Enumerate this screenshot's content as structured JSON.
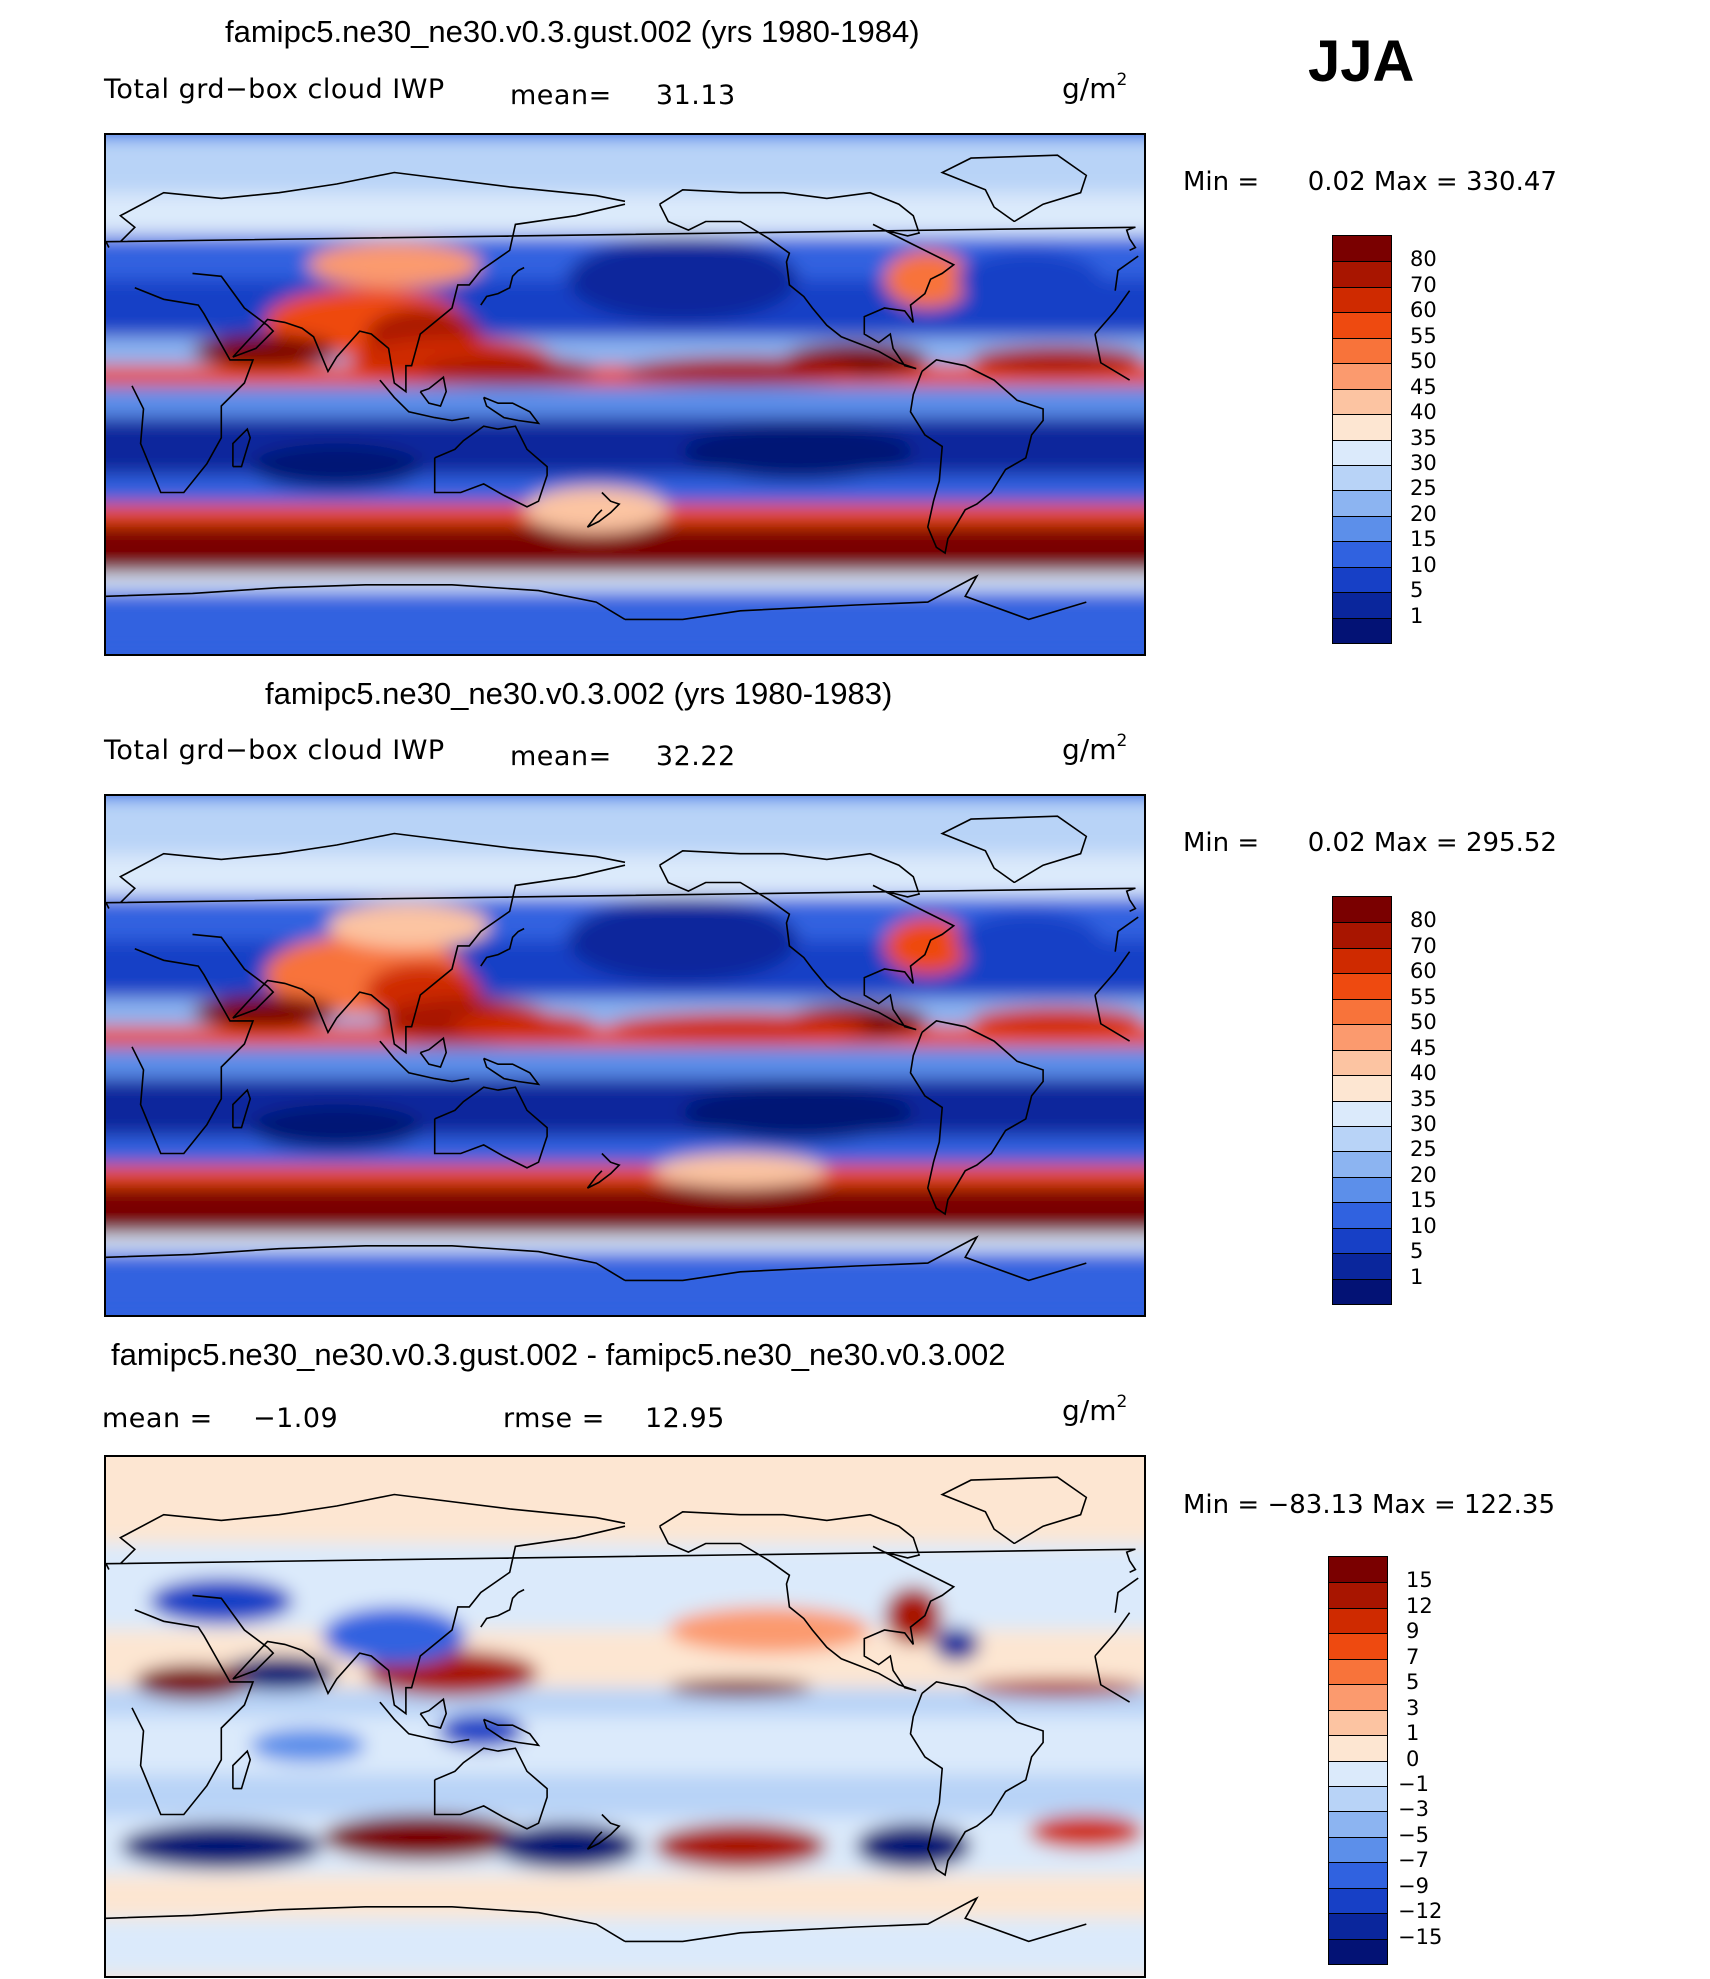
{
  "season": "JJA",
  "panels": [
    {
      "id": "gust",
      "title": "famipc5.ne30_ne30.v0.3.gust.002 (yrs 1980-1984)",
      "variable": "Total grd−box cloud IWP",
      "mean_label": "mean=",
      "mean_value": "31.13",
      "units_base": "g/m",
      "units_exp": "2",
      "min_label": "Min  =",
      "min_value": "0.02",
      "max_label": "Max  =",
      "max_value": "330.47",
      "colorbar": {
        "levels": [
          "80",
          "70",
          "60",
          "55",
          "50",
          "45",
          "40",
          "35",
          "30",
          "25",
          "20",
          "15",
          "10",
          "5",
          "1"
        ],
        "colors": [
          "#7a0000",
          "#a81500",
          "#cf2a00",
          "#ee4a10",
          "#f8733a",
          "#fb9a6e",
          "#fcc4a2",
          "#fde6d2",
          "#dbeafb",
          "#b8d3f7",
          "#8cb4f1",
          "#5c8fea",
          "#3062e0",
          "#1740c6",
          "#0a269c",
          "#031275"
        ]
      }
    },
    {
      "id": "control",
      "title": "famipc5.ne30_ne30.v0.3.002 (yrs 1980-1983)",
      "variable": "Total grd−box cloud IWP",
      "mean_label": "mean=",
      "mean_value": "32.22",
      "units_base": "g/m",
      "units_exp": "2",
      "min_label": "Min  =",
      "min_value": "0.02",
      "max_label": "Max  =",
      "max_value": "295.52",
      "colorbar": {
        "levels": [
          "80",
          "70",
          "60",
          "55",
          "50",
          "45",
          "40",
          "35",
          "30",
          "25",
          "20",
          "15",
          "10",
          "5",
          "1"
        ],
        "colors": [
          "#7a0000",
          "#a81500",
          "#cf2a00",
          "#ee4a10",
          "#f8733a",
          "#fb9a6e",
          "#fcc4a2",
          "#fde6d2",
          "#dbeafb",
          "#b8d3f7",
          "#8cb4f1",
          "#5c8fea",
          "#3062e0",
          "#1740c6",
          "#0a269c",
          "#031275"
        ]
      }
    },
    {
      "id": "diff",
      "title": "famipc5.ne30_ne30.v0.3.gust.002 - famipc5.ne30_ne30.v0.3.002",
      "mean_label": "mean  =",
      "mean_value": "−1.09",
      "rmse_label": "rmse  =",
      "rmse_value": "12.95",
      "units_base": "g/m",
      "units_exp": "2",
      "min_label": "Min  =",
      "min_value": "−83.13",
      "max_label": "Max  =",
      "max_value": "122.35",
      "colorbar": {
        "levels": [
          "15",
          "12",
          "9",
          "7",
          "5",
          "3",
          "1",
          "0",
          "−1",
          "−3",
          "−5",
          "−7",
          "−9",
          "−12",
          "−15"
        ],
        "colors": [
          "#7a0000",
          "#a81500",
          "#cf2a00",
          "#ee4a10",
          "#f8733a",
          "#fb9a6e",
          "#fcc4a2",
          "#fde6d2",
          "#dbeafb",
          "#b8d3f7",
          "#8cb4f1",
          "#5c8fea",
          "#3062e0",
          "#1740c6",
          "#0a269c",
          "#031275"
        ]
      }
    }
  ]
}
